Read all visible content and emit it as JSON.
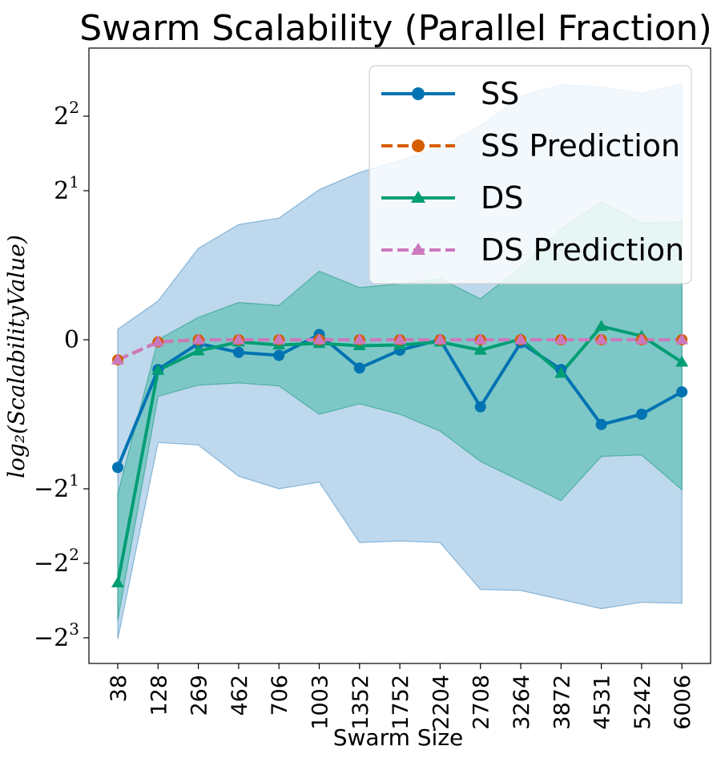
{
  "chart_data": {
    "type": "line",
    "title": "Swarm Scalability (Parallel Fraction)",
    "xlabel": "Swarm Size",
    "ylabel": "log₂(ScalabilityValue)",
    "y_scale": "symlog base 2",
    "ylim": [
      -10,
      6.4
    ],
    "y_ticks": [
      {
        "base": "2",
        "exp": "2",
        "sign": "",
        "value": 4
      },
      {
        "base": "2",
        "exp": "1",
        "sign": "",
        "value": 2
      },
      {
        "base": "0",
        "exp": "",
        "sign": "",
        "value": 0
      },
      {
        "base": "2",
        "exp": "1",
        "sign": "−",
        "value": -2
      },
      {
        "base": "2",
        "exp": "2",
        "sign": "−",
        "value": -4
      },
      {
        "base": "2",
        "exp": "3",
        "sign": "−",
        "value": -8
      }
    ],
    "categories": [
      "38",
      "128",
      "269",
      "462",
      "706",
      "1003",
      "1352",
      "1752",
      "2204",
      "2708",
      "3264",
      "3872",
      "4531",
      "5242",
      "6006"
    ],
    "series": [
      {
        "name": "SS",
        "color": "#0173b2",
        "marker": "circle",
        "dash": "solid",
        "values": [
          -1.64,
          -0.4,
          -0.05,
          -0.17,
          -0.21,
          0.07,
          -0.38,
          -0.14,
          0.0,
          -0.9,
          -0.04,
          -0.4,
          -1.1,
          -1.0,
          -0.7
        ],
        "band_lower": [
          -8.1,
          -1.3,
          -1.33,
          -1.78,
          -2.0,
          -1.88,
          -3.3,
          -3.25,
          -3.3,
          -5.1,
          -5.15,
          -5.6,
          -6.1,
          -5.75,
          -5.8
        ],
        "band_upper": [
          0.14,
          0.52,
          1.17,
          1.46,
          1.55,
          2.02,
          2.37,
          2.65,
          3.0,
          3.65,
          4.82,
          5.35,
          5.25,
          4.95,
          5.4
        ]
      },
      {
        "name": "SS Prediction",
        "color": "#d55e00",
        "marker": "circle",
        "dash": "dashed",
        "values": [
          -0.27,
          -0.03,
          0.0,
          0.0,
          0.0,
          0.0,
          0.0,
          0.0,
          0.0,
          0.0,
          0.0,
          0.0,
          0.0,
          0.0,
          0.0
        ]
      },
      {
        "name": "DS",
        "color": "#029e73",
        "marker": "triangle",
        "dash": "solid",
        "values": [
          -4.8,
          -0.41,
          -0.15,
          -0.03,
          -0.07,
          -0.05,
          -0.08,
          -0.07,
          -0.03,
          -0.14,
          0.01,
          -0.45,
          0.18,
          0.05,
          -0.3
        ],
        "band_lower": [
          -6.8,
          -0.76,
          -0.61,
          -0.58,
          -0.62,
          -1.0,
          -0.86,
          -1.0,
          -1.17,
          -1.55,
          -1.86,
          -2.23,
          -1.48,
          -1.46,
          -2.02
        ],
        "band_upper": [
          -2.1,
          0.0,
          0.3,
          0.5,
          0.46,
          0.92,
          0.7,
          0.75,
          0.82,
          0.55,
          0.97,
          1.4,
          1.8,
          1.48,
          1.5
        ]
      },
      {
        "name": "DS Prediction",
        "color": "#cc78bc",
        "marker": "triangle",
        "dash": "dashed",
        "values": [
          -0.27,
          -0.03,
          0.0,
          0.0,
          0.0,
          0.0,
          0.0,
          0.0,
          0.0,
          0.0,
          0.0,
          0.0,
          0.0,
          0.0,
          0.0
        ]
      }
    ],
    "legend": [
      "SS",
      "SS Prediction",
      "DS",
      "DS Prediction"
    ],
    "legend_placement": "top-right",
    "grid": false
  }
}
